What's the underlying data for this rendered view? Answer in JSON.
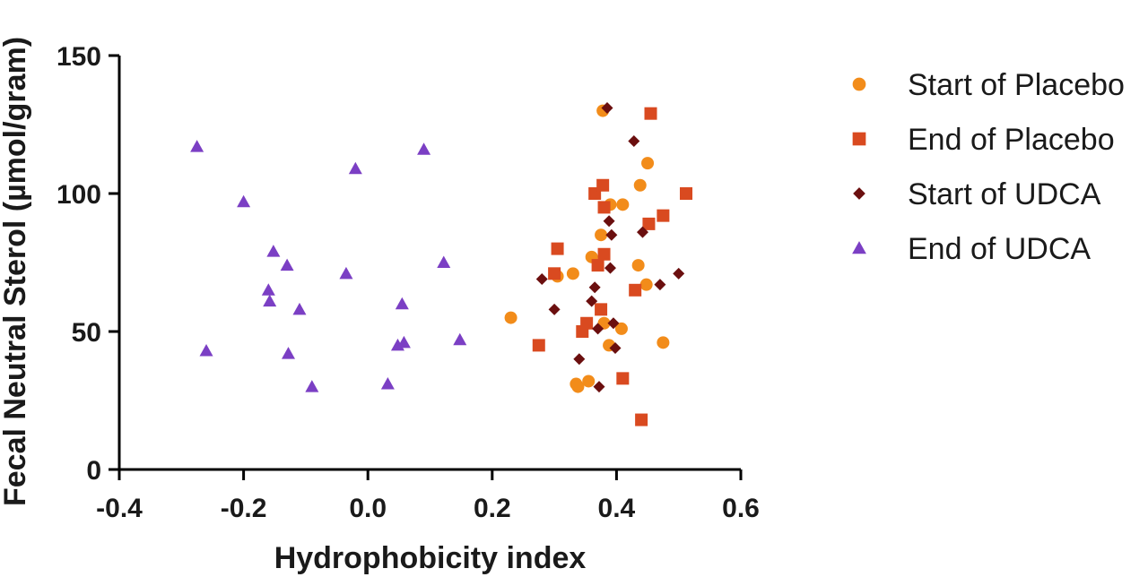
{
  "chart_data": {
    "type": "scatter",
    "xlabel": "Hydrophobicity index",
    "ylabel": "Fecal Neutral Sterol (µmol/gram)",
    "xlim": [
      -0.4,
      0.6
    ],
    "ylim": [
      0,
      150
    ],
    "xticks": [
      "-0.4",
      "-0.2",
      "0.0",
      "0.2",
      "0.4",
      "0.6"
    ],
    "yticks": [
      "0",
      "50",
      "100",
      "150"
    ],
    "grid": false,
    "legend_position": "right",
    "series": [
      {
        "name": "Start of Placebo",
        "marker": "circle",
        "color": "#f28c1a",
        "points": [
          [
            0.23,
            55
          ],
          [
            0.305,
            70
          ],
          [
            0.33,
            71
          ],
          [
            0.335,
            31
          ],
          [
            0.338,
            30
          ],
          [
            0.355,
            32
          ],
          [
            0.36,
            77
          ],
          [
            0.375,
            85
          ],
          [
            0.378,
            130
          ],
          [
            0.38,
            53
          ],
          [
            0.388,
            45
          ],
          [
            0.39,
            96
          ],
          [
            0.41,
            96
          ],
          [
            0.408,
            51
          ],
          [
            0.435,
            74
          ],
          [
            0.438,
            103
          ],
          [
            0.45,
            111
          ],
          [
            0.448,
            67
          ],
          [
            0.475,
            46
          ]
        ]
      },
      {
        "name": "End of Placebo",
        "marker": "square",
        "color": "#d94a20",
        "points": [
          [
            0.275,
            45
          ],
          [
            0.3,
            71
          ],
          [
            0.305,
            80
          ],
          [
            0.345,
            50
          ],
          [
            0.352,
            53
          ],
          [
            0.365,
            100
          ],
          [
            0.37,
            74
          ],
          [
            0.375,
            58
          ],
          [
            0.378,
            103
          ],
          [
            0.38,
            78
          ],
          [
            0.38,
            95
          ],
          [
            0.41,
            33
          ],
          [
            0.43,
            65
          ],
          [
            0.44,
            18
          ],
          [
            0.452,
            89
          ],
          [
            0.455,
            129
          ],
          [
            0.475,
            92
          ],
          [
            0.512,
            100
          ]
        ]
      },
      {
        "name": "Start of UDCA",
        "marker": "diamond",
        "color": "#6b0f0f",
        "points": [
          [
            0.28,
            69
          ],
          [
            0.3,
            58
          ],
          [
            0.34,
            40
          ],
          [
            0.36,
            61
          ],
          [
            0.365,
            66
          ],
          [
            0.37,
            51
          ],
          [
            0.372,
            30
          ],
          [
            0.385,
            131
          ],
          [
            0.388,
            90
          ],
          [
            0.39,
            73
          ],
          [
            0.392,
            85
          ],
          [
            0.395,
            53
          ],
          [
            0.398,
            44
          ],
          [
            0.428,
            119
          ],
          [
            0.442,
            86
          ],
          [
            0.47,
            67
          ],
          [
            0.5,
            71
          ]
        ]
      },
      {
        "name": "End of UDCA",
        "marker": "triangle",
        "color": "#7b3fc4",
        "points": [
          [
            -0.275,
            117
          ],
          [
            -0.26,
            43
          ],
          [
            -0.2,
            97
          ],
          [
            -0.16,
            65
          ],
          [
            -0.158,
            61
          ],
          [
            -0.152,
            79
          ],
          [
            -0.13,
            74
          ],
          [
            -0.128,
            42
          ],
          [
            -0.11,
            58
          ],
          [
            -0.09,
            30
          ],
          [
            -0.035,
            71
          ],
          [
            -0.02,
            109
          ],
          [
            0.032,
            31
          ],
          [
            0.048,
            45
          ],
          [
            0.055,
            60
          ],
          [
            0.058,
            46
          ],
          [
            0.09,
            116
          ],
          [
            0.122,
            75
          ],
          [
            0.148,
            47
          ]
        ]
      }
    ]
  }
}
